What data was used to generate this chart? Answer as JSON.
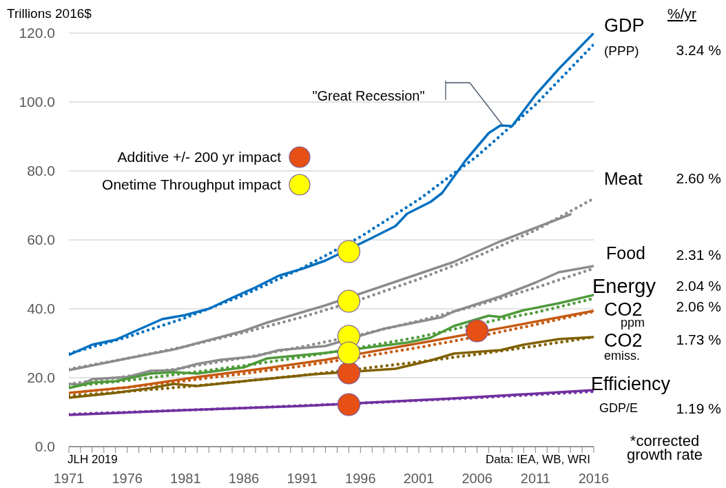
{
  "chart_data": {
    "type": "line",
    "ylabel": "Trillions 2016$",
    "xlim": [
      1971,
      2016
    ],
    "xticks": [
      1971,
      {
        "value": 1972,
        "label": null
      },
      {
        "value": 1973,
        "label": null
      },
      {
        "value": 1974,
        "label": null
      },
      {
        "value": 1975,
        "label": null
      },
      1976,
      {
        "value": 1977,
        "label": null
      },
      {
        "value": 1978,
        "label": null
      },
      {
        "value": 1979,
        "label": null
      },
      {
        "value": 1980,
        "label": null
      },
      1981,
      {
        "value": 1982,
        "label": null
      },
      {
        "value": 1983,
        "label": null
      },
      {
        "value": 1984,
        "label": null
      },
      {
        "value": 1985,
        "label": null
      },
      1986,
      {
        "value": 1987,
        "label": null
      },
      {
        "value": 1988,
        "label": null
      },
      {
        "value": 1989,
        "label": null
      },
      {
        "value": 1990,
        "label": null
      },
      1991,
      {
        "value": 1992,
        "label": null
      },
      {
        "value": 1993,
        "label": null
      },
      {
        "value": 1994,
        "label": null
      },
      {
        "value": 1995,
        "label": null
      },
      1996,
      {
        "value": 1997,
        "label": null
      },
      {
        "value": 1998,
        "label": null
      },
      {
        "value": 1999,
        "label": null
      },
      {
        "value": 2000,
        "label": null
      },
      2001,
      {
        "value": 2002,
        "label": null
      },
      {
        "value": 2003,
        "label": null
      },
      {
        "value": 2004,
        "label": null
      },
      {
        "value": 2005,
        "label": null
      },
      2006,
      {
        "value": 2007,
        "label": null
      },
      {
        "value": 2008,
        "label": null
      },
      {
        "value": 2009,
        "label": null
      },
      {
        "value": 2010,
        "label": null
      },
      2011,
      {
        "value": 2012,
        "label": null
      },
      {
        "value": 2013,
        "label": null
      },
      {
        "value": 2014,
        "label": null
      },
      {
        "value": 2015,
        "label": null
      },
      2016
    ],
    "ylim": [
      0,
      120
    ],
    "yticks": [
      {
        "value": 0,
        "label": "0.0"
      },
      {
        "value": 20,
        "label": "20.0"
      },
      {
        "value": 40,
        "label": "40.0"
      },
      {
        "value": 60,
        "label": "60.0"
      },
      {
        "value": 80,
        "label": "80.0"
      },
      {
        "value": 100,
        "label": "100.0"
      },
      {
        "value": 120,
        "label": "120.0"
      }
    ],
    "grid": "y",
    "legend": "top left",
    "line_style": "solid",
    "marker": "none",
    "series": [
      {
        "name": "GDP",
        "color": "#0070c0",
        "x": [
          1971,
          1973,
          1975,
          1977,
          1979,
          1981,
          1983,
          1985,
          1987,
          1989,
          1991,
          1993,
          1997,
          1999,
          2000,
          2002,
          2003,
          2005,
          2007,
          2008,
          2009,
          2011,
          2013,
          2016
        ],
        "values": [
          26.6,
          29.6,
          31,
          34,
          37,
          38.2,
          40,
          43.2,
          46.2,
          49.6,
          51.6,
          54,
          60.6,
          64,
          67.6,
          71,
          73.6,
          83,
          91,
          93.2,
          93,
          102,
          109.6,
          120
        ]
      },
      {
        "color": "#0070c0",
        "line_style": "dotted",
        "x": [
          1971,
          1976,
          1981,
          1986,
          1991,
          1996,
          2001,
          2006,
          2011,
          2016
        ],
        "values": [
          27,
          31.8,
          37.4,
          44,
          51.8,
          60.9,
          71.7,
          84.3,
          99.2,
          116.7
        ]
      },
      {
        "name": "Meat",
        "color": "#8c8c8c",
        "x": [
          1971,
          1976,
          1980,
          1982,
          1986,
          1988,
          1993,
          2000,
          2004,
          2008,
          2014
        ],
        "values": [
          22.2,
          25.6,
          28.2,
          30,
          33.6,
          36,
          41,
          49,
          53.6,
          59.6,
          67.4
        ]
      },
      {
        "color": "#8c8c8c",
        "line_style": "dotted",
        "x": [
          1971,
          1976,
          1981,
          1986,
          1991,
          1996,
          2001,
          2006,
          2011,
          2016
        ],
        "values": [
          22.5,
          25.6,
          29.1,
          33.1,
          37.6,
          42.7,
          48.6,
          55.2,
          62.8,
          72
        ]
      },
      {
        "name": "Food",
        "color": "#8c8c8c",
        "x": [
          1971,
          1972,
          1973,
          1976,
          1978,
          1980,
          1982,
          1984,
          1987,
          1989,
          1993,
          1998,
          2003,
          2004,
          2008,
          2011,
          2013,
          2016
        ],
        "values": [
          18.2,
          18,
          19.6,
          20.2,
          22,
          22.2,
          24,
          25.2,
          26.2,
          28,
          29.2,
          34.2,
          37.6,
          39.2,
          43.6,
          47.6,
          50.6,
          52.4
        ]
      },
      {
        "color": "#8c8c8c",
        "line_style": "dotted",
        "x": [
          1971,
          1976,
          1981,
          1986,
          1991,
          1996,
          2001,
          2006,
          2011,
          2016
        ],
        "values": [
          18.2,
          20.4,
          23,
          25.8,
          29,
          32.5,
          36.5,
          41,
          46.1,
          51.7
        ]
      },
      {
        "name": "Energy",
        "color": "#4e9a3a",
        "x": [
          1971,
          1973,
          1975,
          1978,
          1980,
          1982,
          1986,
          1988,
          1993,
          2000,
          2002,
          2004,
          2007,
          2008,
          2010,
          2013,
          2016
        ],
        "values": [
          17,
          18.6,
          19,
          21.2,
          21.6,
          21.2,
          23,
          25.6,
          27.2,
          30.2,
          31.6,
          35,
          38,
          37.6,
          39.6,
          41.6,
          44
        ]
      },
      {
        "color": "#4e9a3a",
        "line_style": "dotted",
        "x": [
          1971,
          1976,
          1981,
          1986,
          1991,
          1996,
          2001,
          2004,
          2008,
          2011,
          2016
        ],
        "values": [
          17.4,
          19.2,
          21.3,
          23.5,
          26,
          28.8,
          31.8,
          34.1,
          37,
          38.9,
          43
        ]
      },
      {
        "name": "CO2",
        "color": "#c55a11",
        "x": [
          1971,
          1976,
          1982,
          1988,
          1993,
          2002,
          2016
        ],
        "values": [
          15.6,
          17.2,
          20.2,
          22.8,
          25.2,
          30.6,
          39.4
        ]
      },
      {
        "color": "#c55a11",
        "line_style": "dotted",
        "x": [
          1971,
          1976,
          1981,
          1986,
          1991,
          1996,
          2001,
          2006,
          2011,
          2016
        ],
        "values": [
          15.5,
          17.2,
          19.1,
          21.2,
          23.4,
          26,
          28.8,
          31.9,
          35.4,
          39.2
        ]
      },
      {
        "name": "CO2",
        "color": "#7f6000",
        "x": [
          1971,
          1975,
          1978,
          1980,
          1982,
          1986,
          1992,
          1999,
          2002,
          2004,
          2008,
          2010,
          2013,
          2016
        ],
        "values": [
          14.2,
          15.6,
          17,
          18.2,
          17.6,
          19,
          21,
          22.6,
          25,
          27,
          28,
          29.6,
          31.2,
          31.8
        ]
      },
      {
        "color": "#7f6000",
        "line_style": "dotted",
        "x": [
          1971,
          1976,
          1981,
          1986,
          1991,
          1996,
          2001,
          2006,
          2011,
          2016
        ],
        "values": [
          14.7,
          16,
          17.4,
          19,
          20.7,
          22.6,
          24.6,
          26.8,
          29.2,
          31.8
        ]
      },
      {
        "name": "Efficiency",
        "color": "#7030a0",
        "x": [
          1971,
          1981,
          1991,
          2004,
          2016
        ],
        "values": [
          9.2,
          10.6,
          11.8,
          14,
          16.4
        ]
      },
      {
        "color": "#7030a0",
        "line_style": "dotted",
        "x": [
          1971,
          1976,
          1981,
          1986,
          1991,
          1996,
          2001,
          2006,
          2011,
          2016
        ],
        "values": [
          9.4,
          10,
          10.6,
          11.2,
          11.9,
          12.6,
          13.4,
          14.2,
          15.1,
          16
        ]
      },
      {
        "name": "Additive +/- 200 yr impact",
        "type": "scatter",
        "marker": "circle",
        "color": "#e65014",
        "x": [
          1995,
          1995,
          2006
        ],
        "values": [
          21.4,
          12.2,
          33.6
        ]
      },
      {
        "name": "Onetime Throughput impact",
        "type": "scatter",
        "marker": "circle",
        "color": "#ffff00",
        "x": [
          1995,
          1995,
          1995,
          1995
        ],
        "values": [
          56.6,
          42.2,
          32,
          27.2
        ]
      }
    ],
    "annotations": [
      "%/yr",
      "(PPP)",
      "ppm",
      "emiss.",
      "GDP/E",
      "3.24 %",
      "2.60 %",
      "2.31 %",
      "2.04 %",
      "2.06 %",
      "1.73 %",
      "1.19 %",
      "*corrected growth rate",
      "JLH 2019",
      "Data: IEA, WB, WRI",
      "\"Great Recession\""
    ]
  }
}
